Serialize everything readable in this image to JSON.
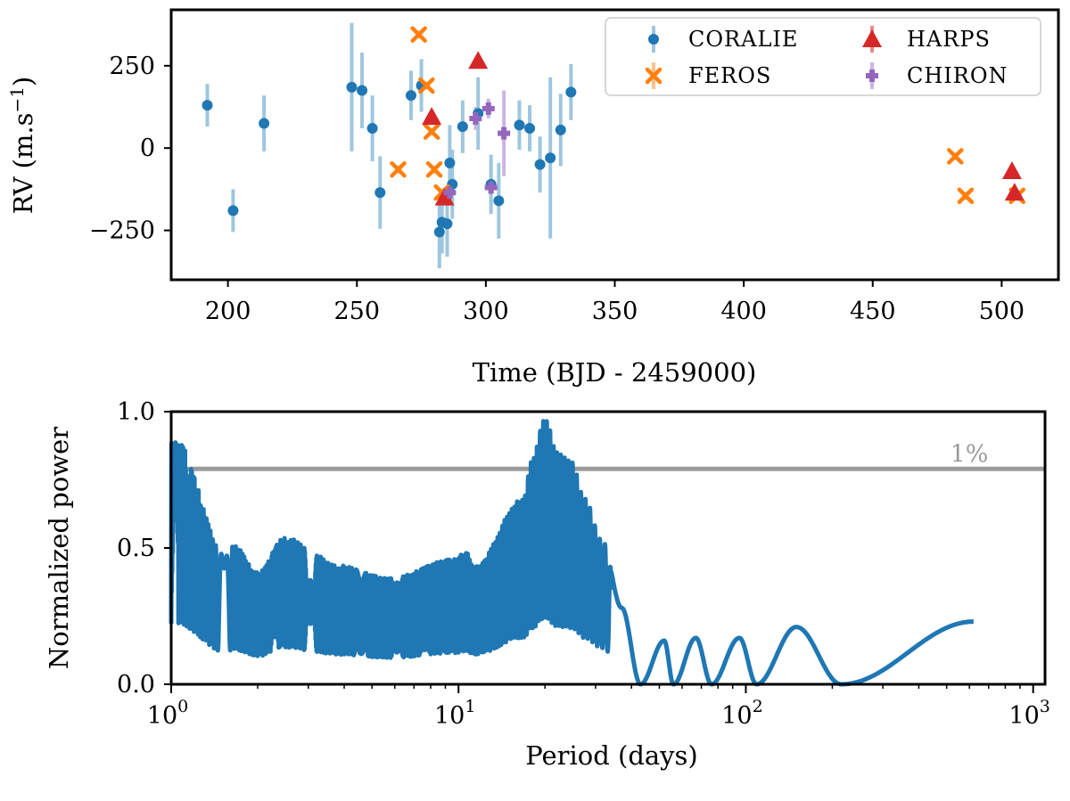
{
  "chart_data": [
    {
      "type": "scatter",
      "xlabel": "Time (BJD - 2459000)",
      "ylabel": "RV (m.s",
      "ylabel_sup": "−1",
      "ylabel_close": ")",
      "xlim": [
        178,
        522
      ],
      "ylim": [
        -400,
        420
      ],
      "xticks": [
        200,
        250,
        300,
        350,
        400,
        450,
        500
      ],
      "yticks": [
        -250,
        0,
        250
      ],
      "ytick_labels": [
        "−250",
        "0",
        "250"
      ],
      "legend_position": "top-right",
      "series": [
        {
          "name": "CORALIE",
          "marker": "circle",
          "color": "#1f77b4",
          "errcolor": "#9ec6df",
          "points": [
            {
              "x": 192,
              "y": 130,
              "err": 65
            },
            {
              "x": 202,
              "y": -190,
              "err": 65
            },
            {
              "x": 214,
              "y": 75,
              "err": 85
            },
            {
              "x": 248,
              "y": 185,
              "err": 195
            },
            {
              "x": 252,
              "y": 175,
              "err": 115
            },
            {
              "x": 256,
              "y": 60,
              "err": 100
            },
            {
              "x": 259,
              "y": -135,
              "err": 110
            },
            {
              "x": 271,
              "y": 160,
              "err": 75
            },
            {
              "x": 275,
              "y": 190,
              "err": 80
            },
            {
              "x": 282,
              "y": -255,
              "err": 110
            },
            {
              "x": 283,
              "y": -225,
              "err": 95
            },
            {
              "x": 285,
              "y": -230,
              "err": 100
            },
            {
              "x": 286,
              "y": -45,
              "err": 115
            },
            {
              "x": 287,
              "y": -110,
              "err": 105
            },
            {
              "x": 291,
              "y": 65,
              "err": 80
            },
            {
              "x": 297,
              "y": 105,
              "err": 110
            },
            {
              "x": 302,
              "y": -110,
              "err": 90
            },
            {
              "x": 305,
              "y": -160,
              "err": 115
            },
            {
              "x": 313,
              "y": 70,
              "err": 75
            },
            {
              "x": 317,
              "y": 60,
              "err": 70
            },
            {
              "x": 321,
              "y": -50,
              "err": 85
            },
            {
              "x": 325,
              "y": -30,
              "err": 245
            },
            {
              "x": 329,
              "y": 55,
              "err": 110
            },
            {
              "x": 333,
              "y": 170,
              "err": 85
            }
          ]
        },
        {
          "name": "FEROS",
          "marker": "x",
          "color": "#ff7f0e",
          "errcolor": "#ffc28c",
          "points": [
            {
              "x": 266,
              "y": -65,
              "err": 12
            },
            {
              "x": 274,
              "y": 345,
              "err": 12
            },
            {
              "x": 277,
              "y": 190,
              "err": 12
            },
            {
              "x": 279,
              "y": 50,
              "err": 12
            },
            {
              "x": 280,
              "y": -65,
              "err": 12
            },
            {
              "x": 283,
              "y": -135,
              "err": 12
            },
            {
              "x": 482,
              "y": -25,
              "err": 12
            },
            {
              "x": 486,
              "y": -145,
              "err": 12
            },
            {
              "x": 506,
              "y": -145,
              "err": 12
            }
          ]
        },
        {
          "name": "HARPS",
          "marker": "triangle",
          "color": "#d62728",
          "errcolor": "#e78a8b",
          "points": [
            {
              "x": 279,
              "y": 95,
              "err": 10
            },
            {
              "x": 284,
              "y": -150,
              "err": 10
            },
            {
              "x": 297,
              "y": 265,
              "err": 10
            },
            {
              "x": 504,
              "y": -70,
              "err": 10
            },
            {
              "x": 505,
              "y": -135,
              "err": 10
            }
          ]
        },
        {
          "name": "CHIRON",
          "marker": "plus-disk",
          "color": "#9467bd",
          "errcolor": "#cdb4e2",
          "points": [
            {
              "x": 286,
              "y": -135,
              "err": 15
            },
            {
              "x": 296,
              "y": 90,
              "err": 35
            },
            {
              "x": 301,
              "y": 120,
              "err": 30
            },
            {
              "x": 302,
              "y": -120,
              "err": 15
            },
            {
              "x": 307,
              "y": 45,
              "err": 130
            }
          ]
        }
      ]
    },
    {
      "type": "line",
      "xlabel": "Period (days)",
      "ylabel": "Normalized power",
      "xscale": "log",
      "xlim": [
        1,
        1100
      ],
      "ylim": [
        0,
        1.0
      ],
      "xticks": [
        {
          "base": "10",
          "exp": "0",
          "value": 1
        },
        {
          "base": "10",
          "exp": "1",
          "value": 10
        },
        {
          "base": "10",
          "exp": "2",
          "value": 100
        },
        {
          "base": "10",
          "exp": "3",
          "value": 1000
        }
      ],
      "yticks": [
        0.0,
        0.5,
        1.0
      ],
      "ytick_labels": [
        "0.0",
        "0.5",
        "1.0"
      ],
      "threshold": {
        "value": 0.79,
        "label": "1%",
        "color": "#8a8a8a"
      },
      "series_color": "#1f77b4",
      "series_desc": "periodogram (power vs period)",
      "peaks": [
        {
          "period": 1.04,
          "power": 0.89
        },
        {
          "period": 1.55,
          "power": 0.47
        },
        {
          "period": 1.65,
          "power": 0.51
        },
        {
          "period": 2.0,
          "power": 0.41
        },
        {
          "period": 2.5,
          "power": 0.54
        },
        {
          "period": 3.3,
          "power": 0.47
        },
        {
          "period": 3.6,
          "power": 0.44
        },
        {
          "period": 5.8,
          "power": 0.39
        },
        {
          "period": 9.7,
          "power": 0.46
        },
        {
          "period": 10.7,
          "power": 0.49
        },
        {
          "period": 11.3,
          "power": 0.43
        },
        {
          "period": 16.8,
          "power": 0.68
        },
        {
          "period": 18.0,
          "power": 0.82
        },
        {
          "period": 20.0,
          "power": 0.98
        },
        {
          "period": 22.0,
          "power": 0.85
        },
        {
          "period": 24.6,
          "power": 0.82
        },
        {
          "period": 27.5,
          "power": 0.68
        },
        {
          "period": 31.5,
          "power": 0.53
        },
        {
          "period": 37.0,
          "power": 0.28
        },
        {
          "period": 52.0,
          "power": 0.16
        },
        {
          "period": 67.0,
          "power": 0.17
        },
        {
          "period": 95.0,
          "power": 0.17
        },
        {
          "period": 150.0,
          "power": 0.21
        },
        {
          "period": 620.0,
          "power": 0.23
        }
      ],
      "nulls": [
        {
          "period": 43,
          "power": 0.0
        },
        {
          "period": 56,
          "power": 0.0
        },
        {
          "period": 76,
          "power": 0.0
        },
        {
          "period": 109,
          "power": 0.0
        },
        {
          "period": 215,
          "power": 0.0
        }
      ]
    }
  ]
}
